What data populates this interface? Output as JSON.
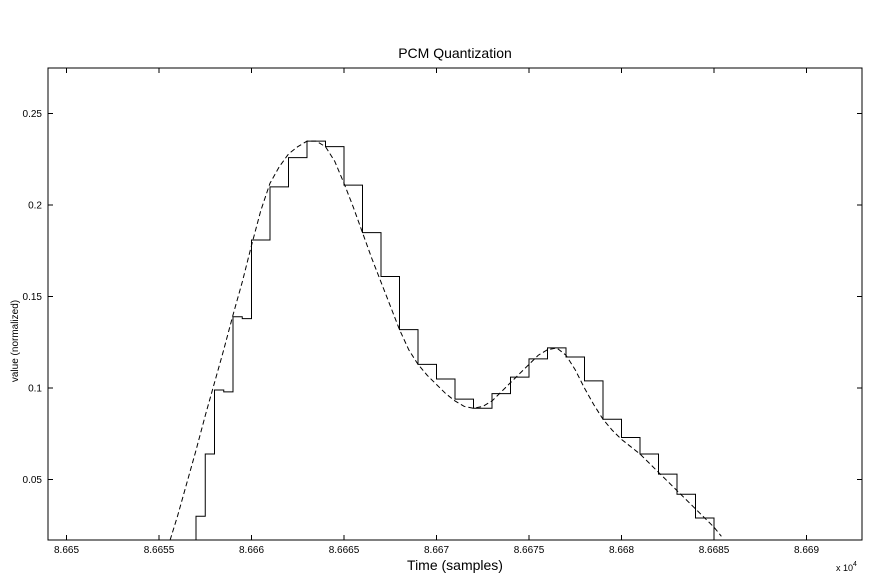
{
  "chart_data": {
    "type": "line",
    "title": "PCM Quantization",
    "xlabel": "Time (samples)",
    "ylabel": "value (normalized)",
    "x_exponent_label": "x 10",
    "x_exponent_power": "4",
    "xlim": [
      8.6649,
      8.6693
    ],
    "ylim": [
      0.017,
      0.275
    ],
    "x_ticks": [
      8.665,
      8.6655,
      8.666,
      8.6665,
      8.667,
      8.6675,
      8.668,
      8.6685,
      8.669
    ],
    "x_tick_labels": [
      "8.665",
      "8.6655",
      "8.666",
      "8.6665",
      "8.667",
      "8.6675",
      "8.668",
      "8.6685",
      "8.669"
    ],
    "y_ticks": [
      0.05,
      0.1,
      0.15,
      0.2,
      0.25
    ],
    "y_tick_labels": [
      "0.05",
      "0.1",
      "0.15",
      "0.2",
      "0.25"
    ],
    "grid": false,
    "series": [
      {
        "style": "dashed",
        "color": "#000000",
        "x": [
          8.66556,
          8.6656,
          8.66565,
          8.6657,
          8.66575,
          8.6658,
          8.66585,
          8.6659,
          8.66595,
          8.666,
          8.66605,
          8.6661,
          8.66615,
          8.6662,
          8.66625,
          8.6663,
          8.66635,
          8.6664,
          8.66645,
          8.6665,
          8.66655,
          8.6666,
          8.66665,
          8.6667,
          8.66675,
          8.6668,
          8.66685,
          8.6669,
          8.66695,
          8.667,
          8.66705,
          8.6671,
          8.66715,
          8.6672,
          8.66725,
          8.6673,
          8.66735,
          8.6674,
          8.66745,
          8.6675,
          8.66755,
          8.6676,
          8.66765,
          8.6677,
          8.66775,
          8.6678,
          8.66785,
          8.6679,
          8.66795,
          8.668,
          8.66805,
          8.6681,
          8.66815,
          8.6682,
          8.66825,
          8.6683,
          8.66835,
          8.6684,
          8.66845,
          8.6685,
          8.66854
        ],
        "y": [
          0.017,
          0.03,
          0.048,
          0.066,
          0.085,
          0.103,
          0.121,
          0.14,
          0.158,
          0.178,
          0.197,
          0.212,
          0.221,
          0.228,
          0.232,
          0.235,
          0.235,
          0.232,
          0.224,
          0.212,
          0.199,
          0.185,
          0.171,
          0.158,
          0.145,
          0.132,
          0.121,
          0.113,
          0.107,
          0.102,
          0.097,
          0.093,
          0.09,
          0.089,
          0.09,
          0.093,
          0.098,
          0.103,
          0.108,
          0.113,
          0.118,
          0.121,
          0.122,
          0.118,
          0.11,
          0.1,
          0.091,
          0.083,
          0.077,
          0.072,
          0.068,
          0.064,
          0.059,
          0.054,
          0.049,
          0.044,
          0.039,
          0.034,
          0.029,
          0.024,
          0.019
        ]
      },
      {
        "style": "step",
        "color": "#000000",
        "x": [
          8.66555,
          8.6657,
          8.66575,
          8.6658,
          8.66585,
          8.6659,
          8.66595,
          8.666,
          8.66605,
          8.6661,
          8.66615,
          8.6662,
          8.66625,
          8.6663,
          8.66635,
          8.6664,
          8.66645,
          8.6665,
          8.66655,
          8.6666,
          8.66665,
          8.6667,
          8.66675,
          8.6668,
          8.66685,
          8.6669,
          8.66695,
          8.667,
          8.66705,
          8.6671,
          8.66715,
          8.6672,
          8.66725,
          8.6673,
          8.66735,
          8.6674,
          8.66745,
          8.6675,
          8.66755,
          8.6676,
          8.66765,
          8.6677,
          8.66775,
          8.6678,
          8.66785,
          8.6679,
          8.66795,
          8.668,
          8.66805,
          8.6681,
          8.66815,
          8.6682,
          8.66825,
          8.6683,
          8.66835,
          8.6684,
          8.66845,
          8.6685
        ],
        "y": [
          0.017,
          0.03,
          0.064,
          0.099,
          0.098,
          0.139,
          0.138,
          0.181,
          0.181,
          0.21,
          0.21,
          0.226,
          0.226,
          0.235,
          0.235,
          0.232,
          0.232,
          0.211,
          0.211,
          0.185,
          0.185,
          0.161,
          0.161,
          0.132,
          0.132,
          0.113,
          0.113,
          0.105,
          0.105,
          0.094,
          0.094,
          0.089,
          0.089,
          0.097,
          0.097,
          0.106,
          0.106,
          0.116,
          0.116,
          0.122,
          0.122,
          0.117,
          0.117,
          0.104,
          0.104,
          0.083,
          0.083,
          0.073,
          0.073,
          0.064,
          0.064,
          0.053,
          0.053,
          0.042,
          0.042,
          0.029,
          0.029,
          0.017
        ]
      }
    ]
  }
}
